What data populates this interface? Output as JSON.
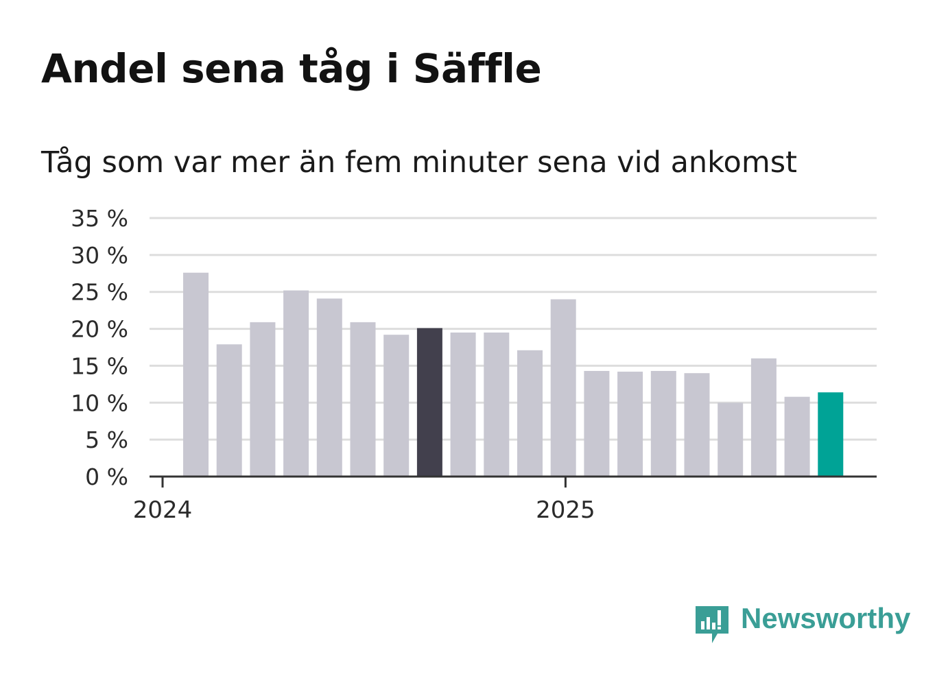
{
  "title": "Andel sena tåg i Säffle",
  "subtitle": "Tåg som var mer än fem minuter sena vid ankomst",
  "brand": {
    "name": "Newsworthy",
    "color": "#3a9e96",
    "icon": "newsworthy-logo-icon"
  },
  "colors": {
    "default_bar": "#c8c7d1",
    "highlight_bar": "#42404d",
    "latest_bar": "#00a396",
    "grid": "#dddddd",
    "axis": "#333333"
  },
  "chart_data": {
    "type": "bar",
    "title": "Andel sena tåg i Säffle",
    "subtitle": "Tåg som var mer än fem minuter sena vid ankomst",
    "xlabel": "",
    "ylabel": "",
    "ylim": [
      0,
      35
    ],
    "yticks": [
      0,
      5,
      10,
      15,
      20,
      25,
      30,
      35
    ],
    "ytick_suffix": " %",
    "year_labels": [
      {
        "label": "2024",
        "index": 0
      },
      {
        "label": "2025",
        "index": 12
      }
    ],
    "categories": [
      "2024-01",
      "2024-02",
      "2024-03",
      "2024-04",
      "2024-05",
      "2024-06",
      "2024-07",
      "2024-08",
      "2024-09",
      "2024-10",
      "2024-11",
      "2024-12",
      "2025-01",
      "2025-02",
      "2025-03",
      "2025-04",
      "2025-05",
      "2025-06",
      "2025-07",
      "2025-08"
    ],
    "values": [
      27.6,
      17.9,
      20.9,
      25.2,
      24.1,
      20.9,
      19.2,
      20.1,
      19.5,
      19.5,
      17.1,
      24.0,
      14.3,
      14.2,
      14.3,
      14.0,
      10.0,
      16.0,
      10.8,
      11.4
    ],
    "highlight_index": 7,
    "latest_index": 19,
    "grid": true
  }
}
